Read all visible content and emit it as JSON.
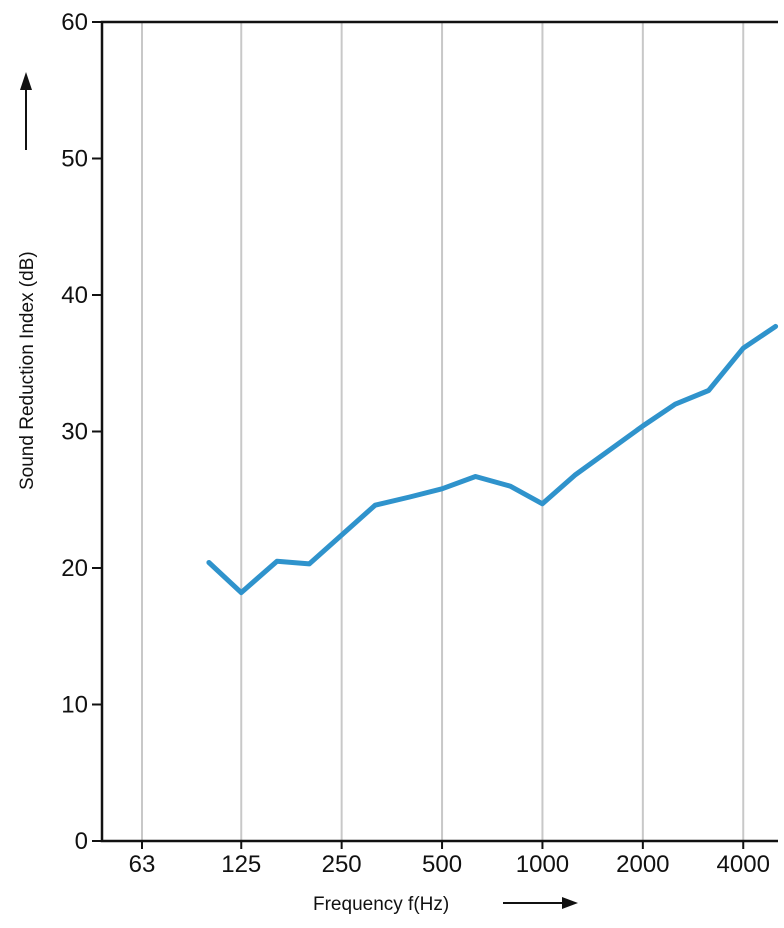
{
  "chart_data": {
    "type": "line",
    "xlabel": "Frequency f(Hz)",
    "ylabel": "Sound Reduction Index (dB)",
    "x_scale": "log2",
    "xlim": [
      50,
      5000
    ],
    "ylim": [
      0,
      60
    ],
    "x_ticks": [
      63,
      125,
      250,
      500,
      1000,
      2000,
      4000
    ],
    "y_ticks": [
      0,
      10,
      20,
      30,
      40,
      50,
      60
    ],
    "grid": "vertical",
    "legend": "none",
    "series": [
      {
        "color": "#2f93cc",
        "x": [
          100,
          125,
          160,
          200,
          315,
          400,
          500,
          630,
          800,
          1000,
          1250,
          2000,
          2500,
          3150,
          4000,
          5000
        ],
        "y": [
          20.4,
          18.2,
          20.5,
          20.3,
          24.6,
          25.2,
          25.8,
          26.7,
          26.0,
          24.7,
          26.8,
          30.4,
          32.0,
          33.0,
          36.1,
          37.7
        ]
      }
    ]
  }
}
